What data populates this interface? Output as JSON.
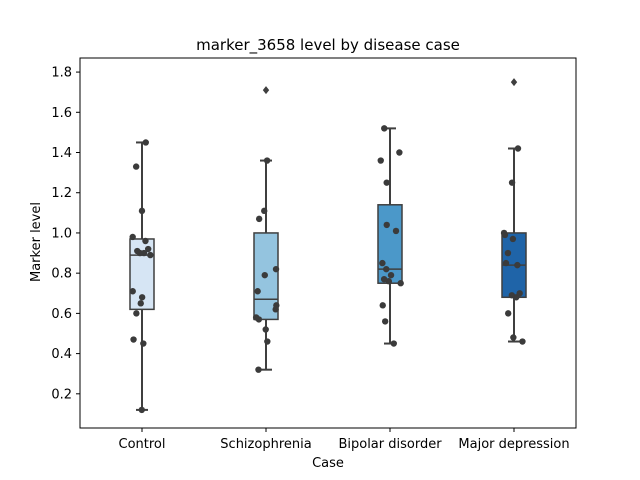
{
  "chart_data": {
    "type": "box",
    "title": "marker_3658 level by disease case",
    "xlabel": "Case",
    "ylabel": "Marker level",
    "ylim": [
      0.03,
      1.87
    ],
    "yticks": [
      "0.2",
      "0.4",
      "0.6",
      "0.8",
      "1.0",
      "1.2",
      "1.4",
      "1.6",
      "1.8"
    ],
    "categories": [
      "Control",
      "Schizophrenia",
      "Bipolar disorder",
      "Major depression"
    ],
    "box_colors": [
      "#d6e5f4",
      "#94c4df",
      "#4b98c9",
      "#1f64a8"
    ],
    "series": [
      {
        "box": {
          "whisker_low": 0.12,
          "q1": 0.62,
          "median": 0.89,
          "q3": 0.97,
          "whisker_high": 1.45
        },
        "outliers": [],
        "points": [
          0.12,
          0.45,
          0.47,
          0.6,
          0.65,
          0.68,
          0.71,
          0.89,
          0.9,
          0.9,
          0.91,
          0.92,
          0.96,
          0.98,
          1.11,
          1.33,
          1.45
        ]
      },
      {
        "box": {
          "whisker_low": 0.32,
          "q1": 0.57,
          "median": 0.67,
          "q3": 1.0,
          "whisker_high": 1.36
        },
        "outliers": [
          1.71
        ],
        "points": [
          0.32,
          0.46,
          0.52,
          0.57,
          0.58,
          0.62,
          0.64,
          0.71,
          0.79,
          0.82,
          1.07,
          1.11,
          1.36
        ]
      },
      {
        "box": {
          "whisker_low": 0.45,
          "q1": 0.75,
          "median": 0.82,
          "q3": 1.14,
          "whisker_high": 1.52
        },
        "outliers": [],
        "points": [
          0.45,
          0.56,
          0.64,
          0.75,
          0.76,
          0.77,
          0.79,
          0.82,
          0.85,
          1.01,
          1.04,
          1.25,
          1.36,
          1.4,
          1.52
        ]
      },
      {
        "box": {
          "whisker_low": 0.46,
          "q1": 0.68,
          "median": 0.84,
          "q3": 1.0,
          "whisker_high": 1.42
        },
        "outliers": [
          1.75
        ],
        "points": [
          0.46,
          0.48,
          0.6,
          0.68,
          0.69,
          0.7,
          0.84,
          0.85,
          0.9,
          0.97,
          0.99,
          1.0,
          1.25,
          1.42
        ]
      }
    ]
  }
}
